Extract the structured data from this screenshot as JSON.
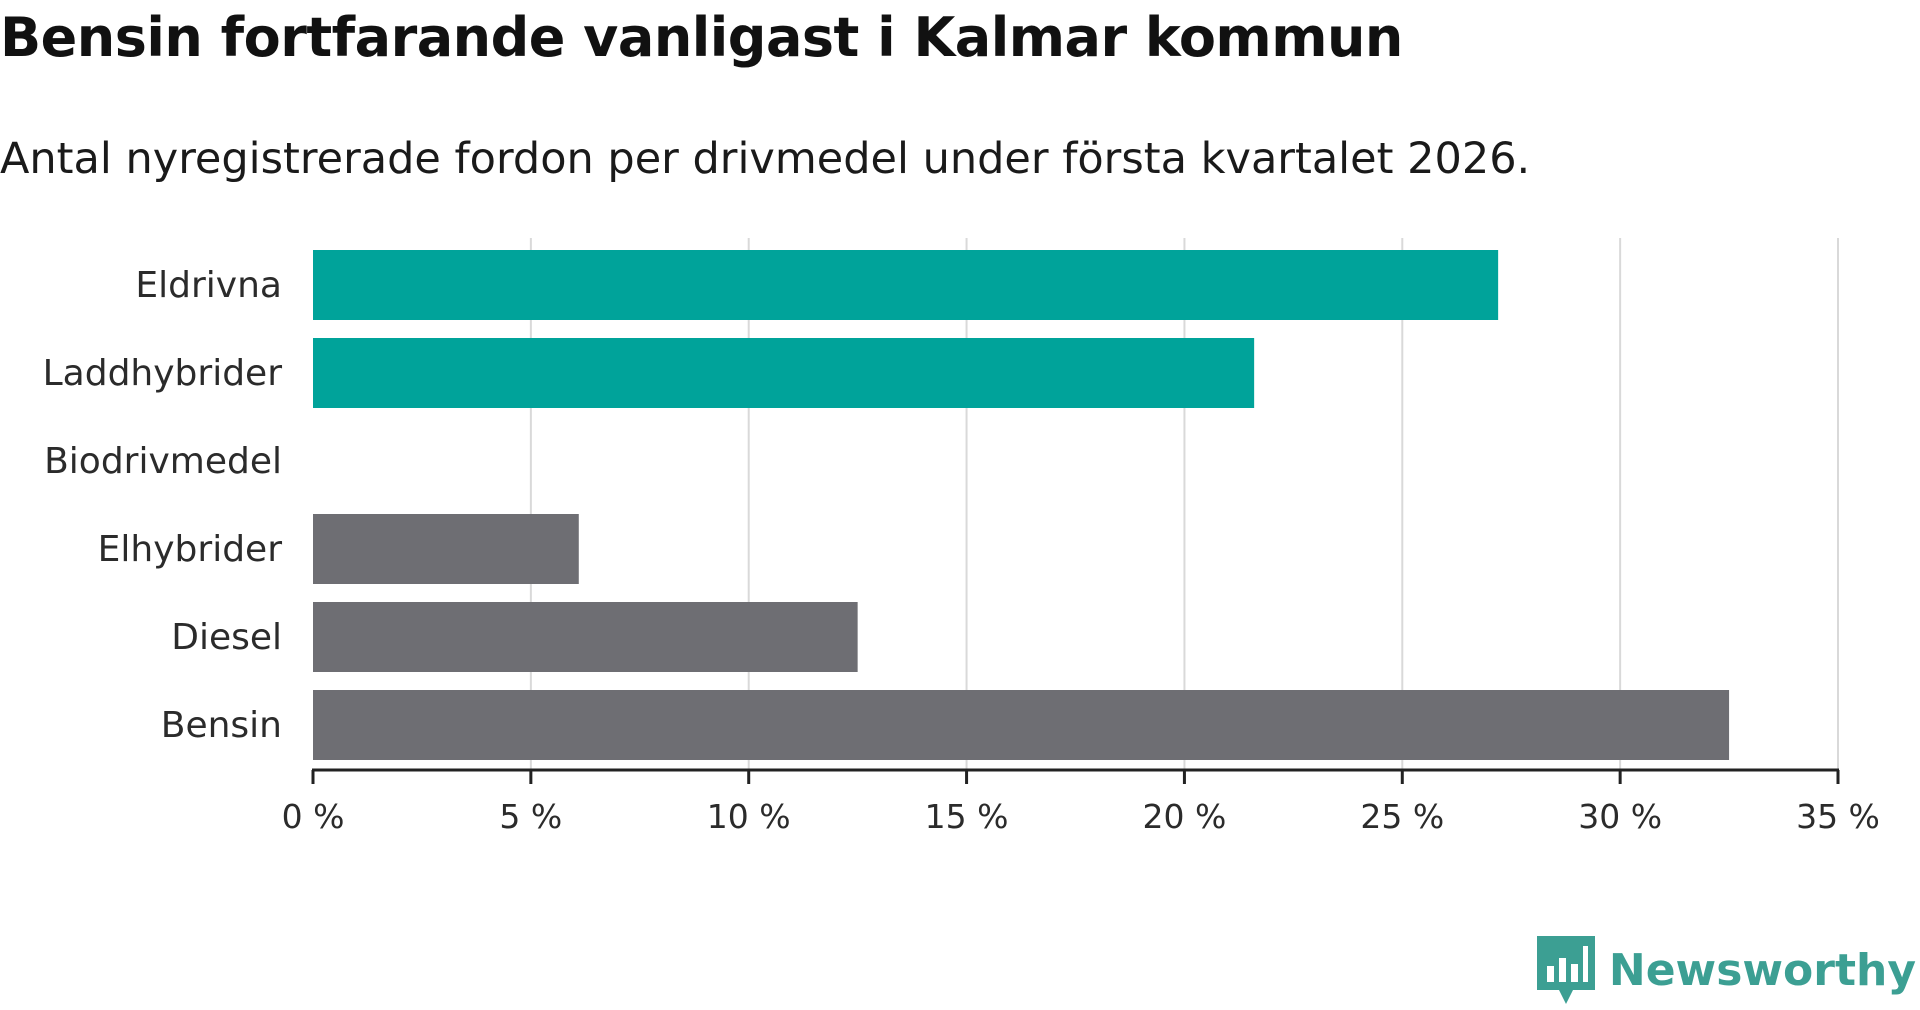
{
  "title": "Bensin fortfarande vanligast i Kalmar kommun",
  "subtitle": "Antal nyregistrerade fordon per drivmedel under första kvartalet 2026.",
  "brand": {
    "name": "Newsworthy",
    "icon": "newsworthy-logo-icon",
    "color": "#3c9f93"
  },
  "chart_data": {
    "type": "bar",
    "orientation": "horizontal",
    "categories": [
      "Eldrivna",
      "Laddhybrider",
      "Biodrivmedel",
      "Elhybrider",
      "Diesel",
      "Bensin"
    ],
    "values": [
      27.2,
      21.6,
      0,
      6.1,
      12.5,
      32.5
    ],
    "colors": [
      "#00a39a",
      "#00a39a",
      "#00a39a",
      "#6e6e73",
      "#6e6e73",
      "#6e6e73"
    ],
    "xlim": [
      0,
      35
    ],
    "xticks": [
      0,
      5,
      10,
      15,
      20,
      25,
      30,
      35
    ],
    "xtick_labels": [
      "0 %",
      "5 %",
      "10 %",
      "15 %",
      "20 %",
      "25 %",
      "30 %",
      "35 %"
    ],
    "grid": "vertical"
  }
}
